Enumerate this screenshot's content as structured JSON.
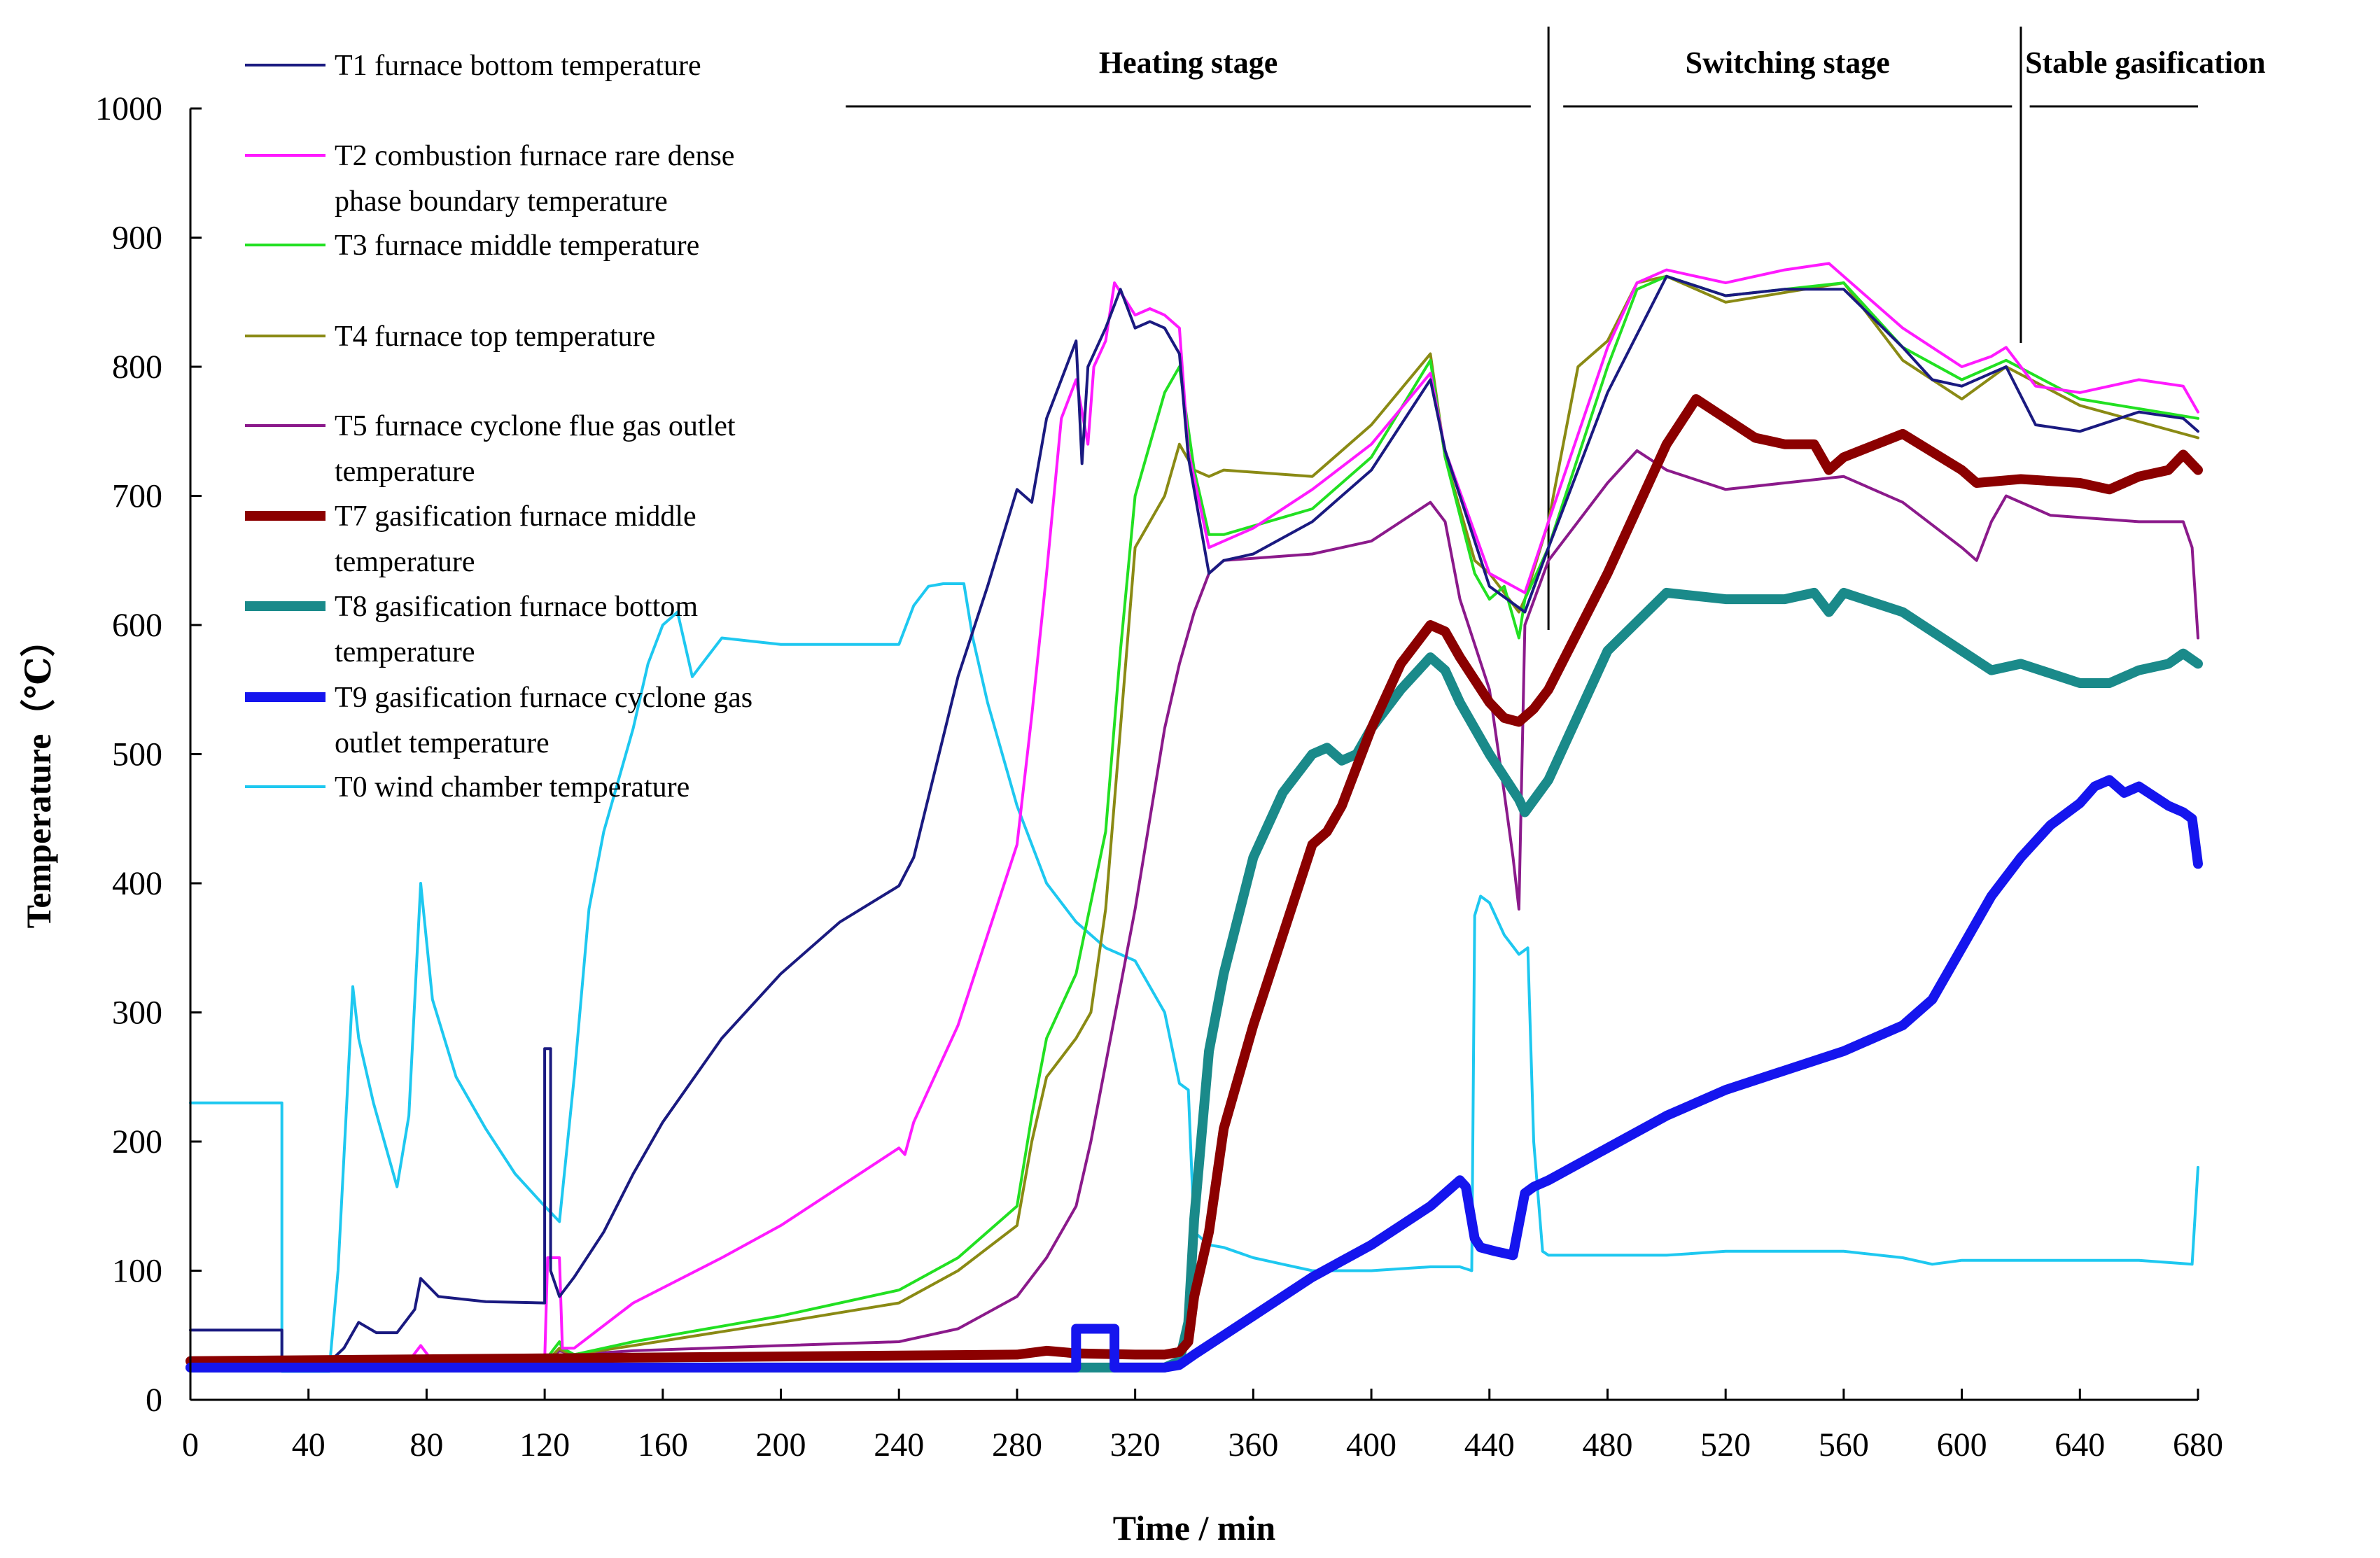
{
  "chart_data": {
    "type": "line",
    "xlabel": "Time / min",
    "ylabel": "Temperature（℃）",
    "xlim": [
      0,
      680
    ],
    "ylim": [
      0,
      1000
    ],
    "xticks": [
      0,
      40,
      80,
      120,
      160,
      200,
      240,
      280,
      320,
      360,
      400,
      440,
      480,
      520,
      560,
      600,
      640,
      680
    ],
    "yticks": [
      0,
      100,
      200,
      300,
      400,
      500,
      600,
      700,
      800,
      900,
      1000
    ],
    "grid": false,
    "legend_position": "top-left",
    "stages": [
      {
        "label": "Heating stage",
        "start": 222,
        "end": 454
      },
      {
        "label": "Switching stage",
        "start": 465,
        "end": 617
      },
      {
        "label": "Stable gasification",
        "start": 623,
        "end": 680
      }
    ],
    "stage_dividers": [
      460,
      620
    ],
    "series": [
      {
        "name": "T1 furnace bottom temperature",
        "color": "#1a1a80",
        "x": [
          0,
          31,
          31,
          46,
          52,
          57,
          63,
          70,
          76,
          78,
          84,
          100,
          120,
          120,
          122,
          122,
          125,
          125,
          130,
          140,
          150,
          160,
          180,
          200,
          220,
          240,
          245,
          260,
          270,
          280,
          285,
          290,
          300,
          302,
          304,
          310,
          315,
          320,
          325,
          330,
          335,
          338,
          345,
          350,
          360,
          380,
          400,
          420,
          425,
          440,
          452,
          460,
          480,
          500,
          520,
          540,
          560,
          580,
          590,
          600,
          610,
          615,
          625,
          640,
          660,
          675,
          680
        ],
        "y": [
          54,
          54,
          25,
          27,
          40,
          60,
          52,
          52,
          70,
          94,
          80,
          76,
          75,
          272,
          272,
          100,
          80,
          80,
          95,
          130,
          175,
          215,
          280,
          330,
          370,
          398,
          420,
          560,
          630,
          705,
          695,
          760,
          820,
          725,
          800,
          830,
          860,
          830,
          835,
          830,
          810,
          730,
          640,
          650,
          655,
          680,
          720,
          790,
          735,
          630,
          610,
          660,
          780,
          870,
          855,
          860,
          860,
          815,
          790,
          785,
          795,
          800,
          755,
          750,
          765,
          760,
          750
        ]
      },
      {
        "name": "T2 combustion furnace rare dense phase boundary temperature",
        "color": "#ff1aff",
        "x": [
          0,
          74,
          78,
          82,
          120,
          121,
          125,
          126,
          130,
          150,
          180,
          200,
          220,
          240,
          242,
          245,
          260,
          270,
          280,
          285,
          290,
          295,
          300,
          304,
          306,
          310,
          313,
          320,
          325,
          330,
          335,
          338,
          345,
          350,
          360,
          380,
          400,
          420,
          425,
          440,
          452,
          460,
          480,
          490,
          500,
          520,
          540,
          555,
          580,
          600,
          610,
          615,
          625,
          640,
          660,
          675,
          680
        ],
        "y": [
          30,
          30,
          42,
          30,
          30,
          110,
          110,
          40,
          40,
          75,
          110,
          135,
          165,
          195,
          190,
          215,
          290,
          360,
          430,
          530,
          640,
          760,
          790,
          740,
          800,
          820,
          865,
          840,
          845,
          840,
          830,
          735,
          660,
          665,
          675,
          705,
          740,
          795,
          735,
          640,
          625,
          680,
          815,
          865,
          875,
          865,
          875,
          880,
          830,
          800,
          808,
          815,
          785,
          780,
          790,
          785,
          765
        ]
      },
      {
        "name": "T3 furnace middle temperature",
        "color": "#22e022",
        "x": [
          0,
          120,
          125,
          126,
          130,
          150,
          200,
          240,
          260,
          280,
          285,
          290,
          300,
          310,
          315,
          320,
          330,
          335,
          340,
          345,
          350,
          380,
          400,
          420,
          425,
          435,
          440,
          445,
          450,
          452,
          460,
          480,
          490,
          500,
          520,
          560,
          580,
          600,
          615,
          640,
          680
        ],
        "y": [
          30,
          30,
          45,
          40,
          35,
          45,
          65,
          85,
          110,
          150,
          220,
          280,
          330,
          440,
          580,
          700,
          780,
          800,
          720,
          670,
          670,
          690,
          730,
          805,
          730,
          640,
          620,
          630,
          590,
          620,
          660,
          800,
          860,
          870,
          855,
          865,
          815,
          790,
          805,
          775,
          760
        ]
      },
      {
        "name": "T4 furnace top temperature",
        "color": "#8a8a14",
        "x": [
          0,
          120,
          125,
          126,
          130,
          150,
          200,
          240,
          260,
          280,
          285,
          290,
          300,
          305,
          310,
          315,
          320,
          330,
          335,
          340,
          345,
          350,
          380,
          400,
          420,
          425,
          435,
          440,
          450,
          452,
          460,
          470,
          480,
          490,
          500,
          520,
          560,
          580,
          600,
          615,
          640,
          680
        ],
        "y": [
          28,
          28,
          40,
          38,
          35,
          42,
          60,
          75,
          100,
          135,
          200,
          250,
          280,
          300,
          380,
          520,
          660,
          700,
          740,
          720,
          715,
          720,
          715,
          755,
          810,
          730,
          650,
          640,
          610,
          620,
          680,
          800,
          820,
          865,
          870,
          850,
          865,
          805,
          775,
          800,
          770,
          745
        ]
      },
      {
        "name": "T5 furnace cyclone flue gas outlet temperature",
        "color": "#8b1a8b",
        "x": [
          0,
          120,
          125,
          130,
          150,
          200,
          240,
          260,
          280,
          290,
          300,
          305,
          310,
          320,
          325,
          330,
          335,
          340,
          345,
          350,
          380,
          400,
          420,
          425,
          430,
          440,
          445,
          448,
          450,
          452,
          460,
          480,
          490,
          500,
          520,
          540,
          560,
          580,
          600,
          605,
          610,
          615,
          630,
          660,
          675,
          678,
          680
        ],
        "y": [
          28,
          28,
          38,
          35,
          38,
          42,
          45,
          55,
          80,
          110,
          150,
          200,
          260,
          380,
          450,
          520,
          570,
          610,
          640,
          650,
          655,
          665,
          695,
          680,
          620,
          550,
          470,
          420,
          380,
          600,
          650,
          710,
          735,
          720,
          705,
          710,
          715,
          695,
          660,
          650,
          680,
          700,
          685,
          680,
          680,
          660,
          590
        ]
      },
      {
        "name": "T7 gasification furnace middle temperature",
        "color": "#8b0000",
        "x": [
          0,
          280,
          290,
          300,
          320,
          330,
          335,
          338,
          340,
          345,
          350,
          360,
          380,
          385,
          390,
          400,
          410,
          420,
          425,
          430,
          440,
          445,
          450,
          455,
          460,
          480,
          500,
          510,
          520,
          530,
          540,
          550,
          555,
          560,
          580,
          600,
          605,
          620,
          640,
          650,
          660,
          670,
          675,
          680
        ],
        "y": [
          30,
          35,
          38,
          36,
          35,
          35,
          37,
          45,
          80,
          130,
          210,
          290,
          430,
          440,
          460,
          520,
          570,
          600,
          595,
          575,
          540,
          528,
          525,
          535,
          550,
          640,
          740,
          775,
          760,
          745,
          740,
          740,
          720,
          730,
          748,
          720,
          710,
          713,
          710,
          705,
          715,
          720,
          732,
          720
        ]
      },
      {
        "name": "T8 gasification furnace bottom temperature",
        "color": "#1a8a8a",
        "x": [
          0,
          330,
          335,
          338,
          340,
          345,
          350,
          360,
          370,
          380,
          385,
          390,
          395,
          400,
          410,
          420,
          425,
          430,
          440,
          450,
          452,
          460,
          480,
          500,
          520,
          540,
          550,
          555,
          560,
          580,
          600,
          610,
          620,
          640,
          645,
          650,
          660,
          670,
          675,
          680
        ],
        "y": [
          25,
          25,
          30,
          60,
          140,
          270,
          330,
          420,
          470,
          500,
          505,
          495,
          500,
          520,
          550,
          575,
          565,
          540,
          500,
          465,
          455,
          480,
          580,
          625,
          620,
          620,
          625,
          610,
          625,
          610,
          580,
          565,
          570,
          555,
          555,
          555,
          565,
          570,
          578,
          570
        ]
      },
      {
        "name": " T9 gasification furnace cyclone gas outlet temperature",
        "color": "#1515ee",
        "x": [
          0,
          300,
          300,
          313,
          313,
          320,
          330,
          335,
          340,
          350,
          360,
          380,
          400,
          420,
          430,
          432,
          435,
          437,
          442,
          448,
          452,
          455,
          460,
          480,
          500,
          520,
          540,
          560,
          580,
          590,
          600,
          610,
          620,
          630,
          640,
          645,
          650,
          655,
          660,
          670,
          675,
          678,
          680
        ],
        "y": [
          25,
          25,
          55,
          55,
          25,
          25,
          25,
          27,
          35,
          50,
          65,
          95,
          120,
          150,
          170,
          165,
          125,
          118,
          115,
          112,
          160,
          165,
          170,
          195,
          220,
          240,
          255,
          270,
          290,
          310,
          350,
          390,
          420,
          445,
          462,
          475,
          480,
          470,
          475,
          460,
          455,
          450,
          415
        ]
      },
      {
        "name": "T0 wind chamber temperature",
        "color": "#1ec8f0",
        "x": [
          0,
          31,
          31,
          47,
          50,
          55,
          57,
          62,
          70,
          74,
          78,
          82,
          90,
          100,
          110,
          120,
          125,
          130,
          135,
          140,
          150,
          155,
          160,
          165,
          170,
          175,
          180,
          200,
          220,
          240,
          245,
          250,
          255,
          262,
          265,
          270,
          280,
          290,
          300,
          310,
          320,
          325,
          330,
          335,
          338,
          340,
          345,
          350,
          360,
          370,
          380,
          400,
          420,
          430,
          434,
          435,
          437,
          440,
          445,
          450,
          453,
          455,
          458,
          460,
          480,
          500,
          520,
          540,
          560,
          580,
          590,
          600,
          620,
          640,
          660,
          678,
          680
        ],
        "y": [
          230,
          230,
          22,
          22,
          100,
          320,
          280,
          230,
          165,
          220,
          400,
          310,
          250,
          210,
          175,
          150,
          138,
          250,
          380,
          440,
          520,
          570,
          600,
          610,
          560,
          575,
          590,
          585,
          585,
          585,
          615,
          630,
          632,
          632,
          590,
          540,
          460,
          400,
          370,
          350,
          340,
          320,
          300,
          245,
          240,
          130,
          120,
          118,
          110,
          105,
          100,
          100,
          103,
          103,
          100,
          375,
          390,
          385,
          360,
          345,
          350,
          200,
          115,
          112,
          112,
          112,
          115,
          115,
          115,
          110,
          105,
          108,
          108,
          108,
          108,
          105,
          180
        ]
      }
    ]
  }
}
